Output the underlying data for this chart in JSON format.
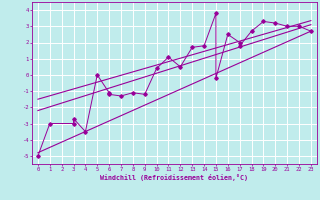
{
  "xlabel": "Windchill (Refroidissement éolien,°C)",
  "bg_color": "#c0ecec",
  "grid_color": "#ffffff",
  "line_color": "#990099",
  "xlim": [
    -0.5,
    23.5
  ],
  "ylim": [
    -5.5,
    4.5
  ],
  "yticks": [
    -5,
    -4,
    -3,
    -2,
    -1,
    0,
    1,
    2,
    3,
    4
  ],
  "xticks": [
    0,
    1,
    2,
    3,
    4,
    5,
    6,
    7,
    8,
    9,
    10,
    11,
    12,
    13,
    14,
    15,
    16,
    17,
    18,
    19,
    20,
    21,
    22,
    23
  ],
  "scatter_x": [
    0,
    1,
    3,
    3,
    4,
    5,
    6,
    6,
    7,
    8,
    9,
    10,
    11,
    12,
    13,
    14,
    15,
    15,
    16,
    17,
    17,
    18,
    19,
    20,
    21,
    22,
    23
  ],
  "scatter_y": [
    -5.0,
    -3.0,
    -3.0,
    -2.7,
    -3.5,
    0.0,
    -1.1,
    -1.2,
    -1.3,
    -1.1,
    -1.2,
    0.4,
    1.1,
    0.5,
    1.7,
    1.8,
    3.8,
    -0.2,
    2.5,
    2.0,
    1.8,
    2.7,
    3.3,
    3.2,
    3.0,
    3.0,
    2.7
  ],
  "line1_x": [
    0,
    23
  ],
  "line1_y": [
    -2.2,
    3.1
  ],
  "line2_x": [
    0,
    23
  ],
  "line2_y": [
    -1.5,
    3.35
  ],
  "line3_x": [
    0,
    23
  ],
  "line3_y": [
    -4.8,
    2.7
  ]
}
